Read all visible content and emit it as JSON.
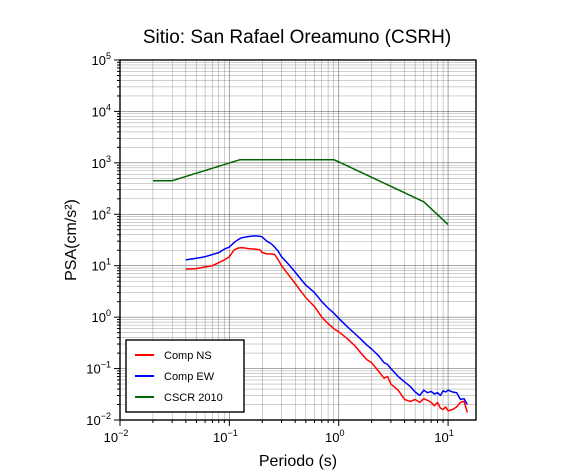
{
  "chart_data": {
    "type": "line",
    "title": "Sitio: San Rafael Oreamuno (CSRH)",
    "xlabel": "Periodo (s)",
    "ylabel": "PSA(cm/s²)",
    "xscale": "log",
    "yscale": "log",
    "xlim": [
      0.01,
      18
    ],
    "ylim": [
      0.01,
      100000
    ],
    "x_ticks": [
      {
        "label": "10",
        "exp": "−2",
        "value": 0.01
      },
      {
        "label": "10",
        "exp": "−1",
        "value": 0.1
      },
      {
        "label": "10",
        "exp": "0",
        "value": 1
      },
      {
        "label": "10",
        "exp": "1",
        "value": 10
      }
    ],
    "y_ticks": [
      {
        "label": "10",
        "exp": "−2",
        "value": 0.01
      },
      {
        "label": "10",
        "exp": "−1",
        "value": 0.1
      },
      {
        "label": "10",
        "exp": "0",
        "value": 1
      },
      {
        "label": "10",
        "exp": "1",
        "value": 10
      },
      {
        "label": "10",
        "exp": "2",
        "value": 100
      },
      {
        "label": "10",
        "exp": "3",
        "value": 1000
      },
      {
        "label": "10",
        "exp": "4",
        "value": 10000
      },
      {
        "label": "10",
        "exp": "5",
        "value": 100000
      }
    ],
    "grid": true,
    "legend_position": "bottom-left",
    "series": [
      {
        "name": "Comp NS",
        "color": "#ff0000",
        "x": [
          0.04,
          0.05,
          0.06,
          0.07,
          0.08,
          0.09,
          0.1,
          0.11,
          0.12,
          0.13,
          0.15,
          0.17,
          0.19,
          0.2,
          0.22,
          0.24,
          0.26,
          0.28,
          0.3,
          0.35,
          0.4,
          0.45,
          0.5,
          0.6,
          0.7,
          0.8,
          0.9,
          1.0,
          1.2,
          1.4,
          1.6,
          1.8,
          2.0,
          2.3,
          2.6,
          2.8,
          3.0,
          3.5,
          4.0,
          4.5,
          5.0,
          5.5,
          6.0,
          6.5,
          7.0,
          7.5,
          8.0,
          8.5,
          9.0,
          9.5,
          10.0,
          11.0,
          12.0,
          13.0,
          14.0,
          15.0
        ],
        "values": [
          8.6,
          8.8,
          9.5,
          10.0,
          11.5,
          13.0,
          15.0,
          20.0,
          22.0,
          22.5,
          21.5,
          21.0,
          20.5,
          18.0,
          17.0,
          17.0,
          16.5,
          13.0,
          10.0,
          6.5,
          4.5,
          3.2,
          2.4,
          1.6,
          1.0,
          0.75,
          0.6,
          0.52,
          0.38,
          0.28,
          0.2,
          0.15,
          0.13,
          0.09,
          0.065,
          0.07,
          0.05,
          0.038,
          0.025,
          0.023,
          0.025,
          0.022,
          0.026,
          0.024,
          0.022,
          0.019,
          0.022,
          0.017,
          0.016,
          0.018,
          0.015,
          0.016,
          0.018,
          0.022,
          0.023,
          0.014
        ]
      },
      {
        "name": "Comp EW",
        "color": "#0000ff",
        "x": [
          0.04,
          0.05,
          0.06,
          0.07,
          0.08,
          0.09,
          0.1,
          0.11,
          0.12,
          0.13,
          0.15,
          0.17,
          0.19,
          0.2,
          0.22,
          0.24,
          0.26,
          0.28,
          0.3,
          0.35,
          0.4,
          0.45,
          0.5,
          0.6,
          0.7,
          0.8,
          0.9,
          1.0,
          1.2,
          1.4,
          1.6,
          1.8,
          2.0,
          2.3,
          2.6,
          2.8,
          3.0,
          3.5,
          4.0,
          4.5,
          5.0,
          5.5,
          6.0,
          6.5,
          7.0,
          7.5,
          8.0,
          8.5,
          9.0,
          9.5,
          10.0,
          11.0,
          12.0,
          13.0,
          14.0,
          15.0
        ],
        "values": [
          13.0,
          14.0,
          15.0,
          16.5,
          18.0,
          21.0,
          23.0,
          28.0,
          32.0,
          35.0,
          37.0,
          38.0,
          37.5,
          36.0,
          30.0,
          27.0,
          23.0,
          19.0,
          15.0,
          10.5,
          7.5,
          5.5,
          4.2,
          3.0,
          2.0,
          1.5,
          1.2,
          0.95,
          0.65,
          0.48,
          0.37,
          0.29,
          0.24,
          0.18,
          0.13,
          0.12,
          0.1,
          0.07,
          0.055,
          0.045,
          0.035,
          0.03,
          0.038,
          0.034,
          0.036,
          0.032,
          0.034,
          0.03,
          0.037,
          0.035,
          0.038,
          0.035,
          0.034,
          0.025,
          0.026,
          0.02
        ]
      },
      {
        "name": "CSCR 2010",
        "color": "#006400",
        "x": [
          0.02,
          0.03,
          0.125,
          0.5,
          0.9,
          1.0,
          6.0,
          10.0
        ],
        "values": [
          450,
          450,
          1150,
          1150,
          1150,
          1050,
          175,
          63
        ]
      }
    ]
  }
}
